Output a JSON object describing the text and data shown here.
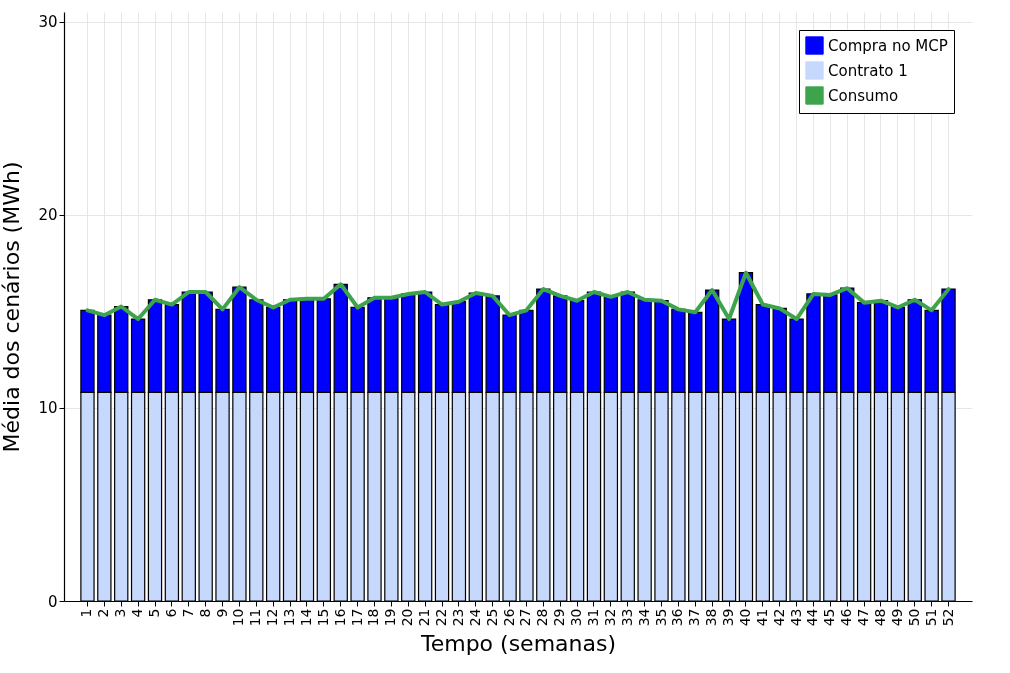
{
  "chart_data": {
    "type": "bar",
    "stacked": true,
    "xlabel": "Tempo (semanas)",
    "ylabel": "Média dos cenários (MWh)",
    "categories": [
      "1",
      "2",
      "3",
      "4",
      "5",
      "6",
      "7",
      "8",
      "9",
      "10",
      "11",
      "12",
      "13",
      "14",
      "15",
      "16",
      "17",
      "18",
      "19",
      "20",
      "21",
      "22",
      "23",
      "24",
      "25",
      "26",
      "27",
      "28",
      "29",
      "30",
      "31",
      "32",
      "33",
      "34",
      "35",
      "36",
      "37",
      "38",
      "39",
      "40",
      "41",
      "42",
      "43",
      "44",
      "45",
      "46",
      "47",
      "48",
      "49",
      "50",
      "51",
      "52"
    ],
    "series": [
      {
        "name": "Contrato 1",
        "color": "#c6d9fd",
        "values": [
          10.8,
          10.8,
          10.8,
          10.8,
          10.8,
          10.8,
          10.8,
          10.8,
          10.8,
          10.8,
          10.8,
          10.8,
          10.8,
          10.8,
          10.8,
          10.8,
          10.8,
          10.8,
          10.8,
          10.8,
          10.8,
          10.8,
          10.8,
          10.8,
          10.8,
          10.8,
          10.8,
          10.8,
          10.8,
          10.8,
          10.8,
          10.8,
          10.8,
          10.8,
          10.8,
          10.8,
          10.8,
          10.8,
          10.8,
          10.8,
          10.8,
          10.8,
          10.8,
          10.8,
          10.8,
          10.8,
          10.8,
          10.8,
          10.8,
          10.8,
          10.8,
          10.8
        ]
      },
      {
        "name": "Compra no MCP",
        "color": "#0000ff",
        "values": [
          4.25,
          4.0,
          4.45,
          3.8,
          4.8,
          4.55,
          5.2,
          5.2,
          4.3,
          5.45,
          4.8,
          4.4,
          4.8,
          4.85,
          4.85,
          5.6,
          4.4,
          4.9,
          4.9,
          5.1,
          5.2,
          4.55,
          4.7,
          5.15,
          5.0,
          4.0,
          4.25,
          5.35,
          5.0,
          4.75,
          5.2,
          4.95,
          5.2,
          4.8,
          4.75,
          4.3,
          4.15,
          5.3,
          3.8,
          6.2,
          4.55,
          4.35,
          3.8,
          5.1,
          5.05,
          5.4,
          4.65,
          4.75,
          4.4,
          4.8,
          4.25,
          5.35
        ]
      },
      {
        "name": "Consumo",
        "type": "line",
        "color": "#3da44d",
        "values": [
          15.05,
          14.8,
          15.25,
          14.6,
          15.6,
          15.35,
          16.0,
          16.0,
          15.1,
          16.25,
          15.6,
          15.2,
          15.6,
          15.65,
          15.65,
          16.4,
          15.2,
          15.7,
          15.7,
          15.9,
          16.0,
          15.35,
          15.5,
          15.95,
          15.8,
          14.8,
          15.05,
          16.15,
          15.8,
          15.55,
          16.0,
          15.75,
          16.0,
          15.6,
          15.55,
          15.1,
          14.95,
          16.1,
          14.6,
          17.0,
          15.35,
          15.15,
          14.6,
          15.9,
          15.85,
          16.2,
          15.45,
          15.55,
          15.2,
          15.6,
          15.05,
          16.15
        ]
      }
    ],
    "ylim": [
      0,
      30.5
    ],
    "yticks": [
      0,
      10,
      20,
      30
    ],
    "grid": true,
    "legend": "top right"
  }
}
